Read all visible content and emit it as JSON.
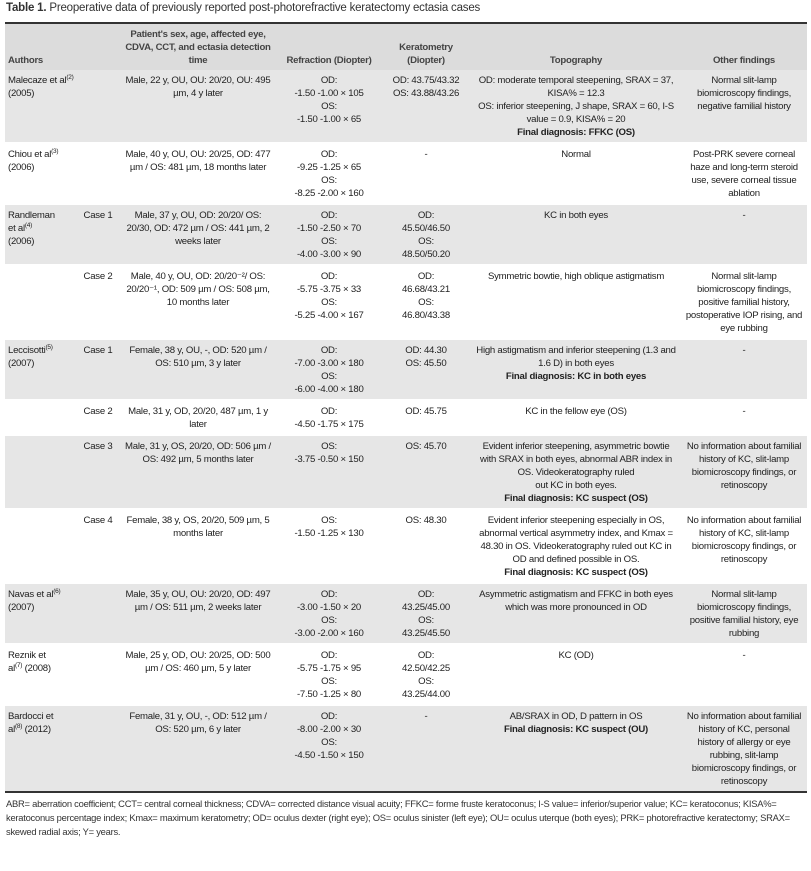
{
  "caption": {
    "label": "Table 1.",
    "text": "Preoperative data of previously reported post-photorefractive keratectomy ectasia cases"
  },
  "headers": {
    "authors": "Authors",
    "case": "",
    "patient": "Patient's sex, age, affected eye, CDVA, CCT, and ectasia detection time",
    "refraction": "Refraction (Diopter)",
    "keratometry": "Keratometry (Diopter)",
    "topography": "Topography",
    "other": "Other findings"
  },
  "rows": [
    {
      "author": "Malecaze et al",
      "ref": "(2)",
      "year": " (2005)",
      "case": "",
      "patient": "Male, 22 y, OU, OU: 20/20, OU: 495 µm, 4 y later",
      "refraction": "OD:\n-1.50 -1.00 × 105\nOS:\n-1.50 -1.00 × 65",
      "keratometry": "OD: 43.75/43.32\nOS: 43.88/43.26",
      "topography": "OD: moderate temporal steepening, SRAX = 37, KISA% = 12.3\nOS: inferior steepening, J shape, SRAX = 60, I-S value = 0.9, KISA% = 20",
      "final": "Final diagnosis: FFKC (OS)",
      "other": "Normal slit-lamp biomicroscopy findings, negative familial history"
    },
    {
      "author": "Chiou et al",
      "ref": "(3)",
      "year": "\n(2006)",
      "case": "",
      "patient": "Male, 40 y, OU, OU: 20/25, OD: 477 µm / OS: 481 µm, 18 months later",
      "refraction": "OD:\n-9.25 -1.25 × 65\nOS:\n-8.25 -2.00 × 160",
      "keratometry": "-",
      "topography": "Normal",
      "final": "",
      "other": "Post-PRK severe corneal haze and long-term steroid use, severe corneal tissue ablation"
    },
    {
      "author": "Randleman\net al",
      "ref": "(4)",
      "year": "\n(2006)",
      "case": "Case 1",
      "patient": "Male, 37 y, OU, OD: 20/20/ OS: 20/30, OD: 472 µm / OS: 441 µm, 2 weeks later",
      "refraction": "OD:\n-1.50 -2.50 × 70\nOS:\n-4.00 -3.00 × 90",
      "keratometry": "OD:\n45.50/46.50\nOS:\n48.50/50.20",
      "topography": "KC in both eyes",
      "final": "",
      "other": "-"
    },
    {
      "author": "",
      "ref": "",
      "year": "",
      "case": "Case 2",
      "patient": "Male, 40 y, OU, OD: 20/20⁻²/ OS: 20/20⁻¹, OD: 509 µm / OS: 508 µm, 10 months later",
      "refraction": "OD:\n-5.75 -3.75 × 33\nOS:\n-5.25 -4.00 × 167",
      "keratometry": "OD:\n46.68/43.21\nOS:\n46.80/43.38",
      "topography": "Symmetric bowtie, high oblique astigmatism",
      "final": "",
      "other": "Normal slit-lamp biomicroscopy findings, positive familial history, postoperative IOP rising, and eye rubbing"
    },
    {
      "author": "Leccisotti",
      "ref": "(5)",
      "year": "\n(2007)",
      "case": "Case 1",
      "patient": "Female, 38 y, OU, -, OD: 520 µm / OS: 510 µm, 3 y later",
      "refraction": "OD:\n-7.00 -3.00 × 180\nOS:\n-6.00 -4.00 × 180",
      "keratometry": "OD: 44.30\nOS: 45.50",
      "topography": "High astigmatism and inferior steepening (1.3 and 1.6 D) in both eyes",
      "final": "Final diagnosis: KC in both eyes",
      "other": "-"
    },
    {
      "author": "",
      "ref": "",
      "year": "",
      "case": "Case 2",
      "patient": "Male, 31 y, OD, 20/20, 487 µm, 1 y later",
      "refraction": "OD:\n-4.50 -1.75 × 175",
      "keratometry": "OD: 45.75",
      "topography": "KC in the fellow eye (OS)",
      "final": "",
      "other": "-"
    },
    {
      "author": "",
      "ref": "",
      "year": "",
      "case": "Case 3",
      "patient": "Male, 31 y, OS, 20/20, OD: 506 µm / OS: 492 µm, 5 months later",
      "refraction": "OS:\n-3.75 -0.50 × 150",
      "keratometry": "OS: 45.70",
      "topography": "Evident inferior steepening, asymmetric bowtie with SRAX in both eyes, abnormal ABR index in OS. Videokeratography ruled\nout KC in both eyes.",
      "final": "Final diagnosis: KC suspect (OS)",
      "other": "No information about familial history of KC, slit-lamp biomicroscopy findings, or retinoscopy"
    },
    {
      "author": "",
      "ref": "",
      "year": "",
      "case": "Case 4",
      "patient": "Female, 38 y, OS, 20/20, 509 µm, 5 months later",
      "refraction": "OS:\n-1.50 -1.25 × 130",
      "keratometry": "OS: 48.30",
      "topography": "Evident inferior steepening especially in OS, abnormal vertical asymmetry index, and Kmax = 48.30 in OS. Videokeratography ruled out KC in OD and defined possible in OS.",
      "final": "Final diagnosis: KC suspect (OS)",
      "other": "No information about familial history of KC, slit-lamp biomicroscopy findings, or retinoscopy"
    },
    {
      "author": "Navas et al",
      "ref": "(6)",
      "year": "\n(2007)",
      "case": "",
      "patient": "Male, 35 y, OU, OU: 20/20, OD: 497 µm / OS: 511 µm, 2 weeks later",
      "refraction": "OD:\n-3.00 -1.50 × 20\nOS:\n-3.00 -2.00 × 160",
      "keratometry": "OD:\n43.25/45.00\nOS:\n43.25/45.50",
      "topography": "Asymmetric astigmatism and FFKC in both eyes which was more pronounced in OD",
      "final": "",
      "other": "Normal slit-lamp biomicroscopy findings, positive familial history, eye rubbing"
    },
    {
      "author": "Reznik et\nal",
      "ref": "(7)",
      "year": " (2008)",
      "case": "",
      "patient": "Male, 25 y, OD, OU: 20/25, OD: 500 µm / OS: 460 µm, 5 y later",
      "refraction": "OD:\n-5.75 -1.75 × 95\nOS:\n-7.50 -1.25 × 80",
      "keratometry": "OD:\n42.50/42.25\nOS:\n43.25/44.00",
      "topography": "KC (OD)",
      "final": "",
      "other": "-"
    },
    {
      "author": "Bardocci et\nal",
      "ref": "(8)",
      "year": " (2012)",
      "case": "",
      "patient": "Female, 31 y, OU, -, OD: 512 µm / OS: 520 µm, 6 y later",
      "refraction": "OD:\n-8.00 -2.00 × 30\nOS:\n-4.50 -1.50 × 150",
      "keratometry": "-",
      "topography": "AB/SRAX in OD, D pattern in OS",
      "final": "Final diagnosis: KC suspect (OU)",
      "other": "No information about familial history of KC, personal history of allergy or eye rubbing, slit-lamp biomicroscopy findings, or retinoscopy"
    }
  ],
  "footnote": "ABR= aberration coefficient; CCT= central corneal thickness; CDVA= corrected distance visual acuity; FFKC= forme fruste keratoconus; I-S value= inferior/superior value; KC= keratoconus; KISA%= keratoconus percentage index; Kmax= maximum keratometry; OD= oculus dexter (right eye); OS= oculus sinister (left eye); OU= oculus uterque (both eyes); PRK= photorefractive keratectomy; SRAX= skewed radial axis; Y= years."
}
